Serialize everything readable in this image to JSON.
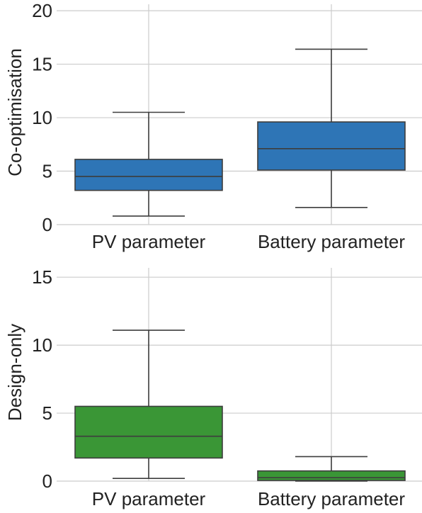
{
  "chart_data": [
    {
      "type": "box",
      "ylabel": "Co-optimisation",
      "ylim": [
        0,
        21
      ],
      "yticks": [
        0,
        5,
        10,
        15,
        20
      ],
      "categories": [
        "PV parameter",
        "Battery parameter"
      ],
      "grid": true,
      "boxes": [
        {
          "category": "PV parameter",
          "whisker_low": 0.8,
          "q1": 3.2,
          "median": 4.5,
          "q3": 6.1,
          "whisker_high": 10.5,
          "color": "#2e75b6"
        },
        {
          "category": "Battery parameter",
          "whisker_low": 1.6,
          "q1": 5.1,
          "median": 7.1,
          "q3": 9.6,
          "whisker_high": 16.4,
          "color": "#2e75b6"
        }
      ]
    },
    {
      "type": "box",
      "ylabel": "Design-only",
      "ylim": [
        0,
        16
      ],
      "yticks": [
        0,
        5,
        10,
        15
      ],
      "categories": [
        "PV parameter",
        "Battery parameter"
      ],
      "grid": true,
      "boxes": [
        {
          "category": "PV parameter",
          "whisker_low": 0.2,
          "q1": 1.7,
          "median": 3.3,
          "q3": 5.5,
          "whisker_high": 11.1,
          "color": "#3a9636"
        },
        {
          "category": "Battery parameter",
          "whisker_low": 0.0,
          "q1": 0.05,
          "median": 0.25,
          "q3": 0.75,
          "whisker_high": 1.8,
          "color": "#3a9636"
        }
      ]
    }
  ]
}
